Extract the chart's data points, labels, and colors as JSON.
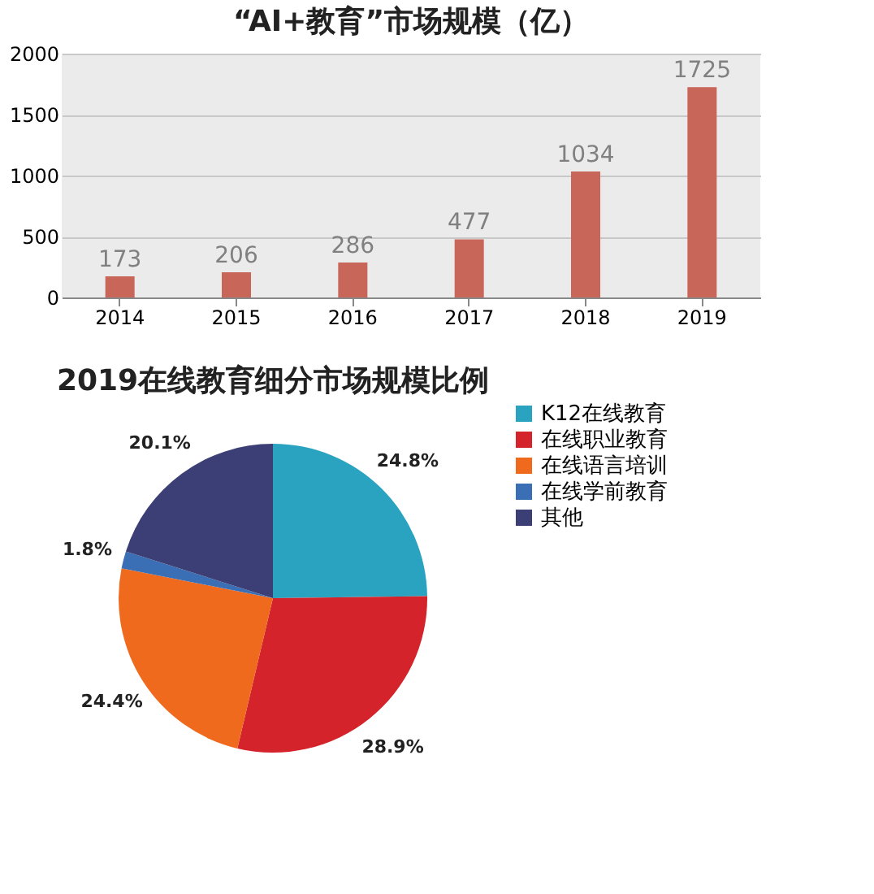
{
  "chart_data": [
    {
      "type": "bar",
      "title": "“AI+教育”市场规模（亿）",
      "categories": [
        "2014",
        "2015",
        "2016",
        "2017",
        "2018",
        "2019"
      ],
      "values": [
        173,
        206,
        286,
        477,
        1034,
        1725
      ],
      "color": "#c9665a",
      "ylim": [
        0,
        2000
      ],
      "yticks": [
        0,
        500,
        1000,
        1500,
        2000
      ],
      "grid": "y",
      "data_labels": true
    },
    {
      "type": "pie",
      "title": "2019在线教育细分市场规模比例",
      "categories": [
        "K12在线教育",
        "在线职业教育",
        "在线语言培训",
        "在线学前教育",
        "其他"
      ],
      "values": [
        24.8,
        28.9,
        24.4,
        1.8,
        20.1
      ],
      "colors": [
        "#2aa3c0",
        "#d4232b",
        "#f06a1e",
        "#3a6fb5",
        "#3c3f75"
      ],
      "value_labels": [
        "24.8%",
        "28.9%",
        "24.4%",
        "1.8%",
        "20.1%"
      ],
      "legend": "right"
    }
  ]
}
